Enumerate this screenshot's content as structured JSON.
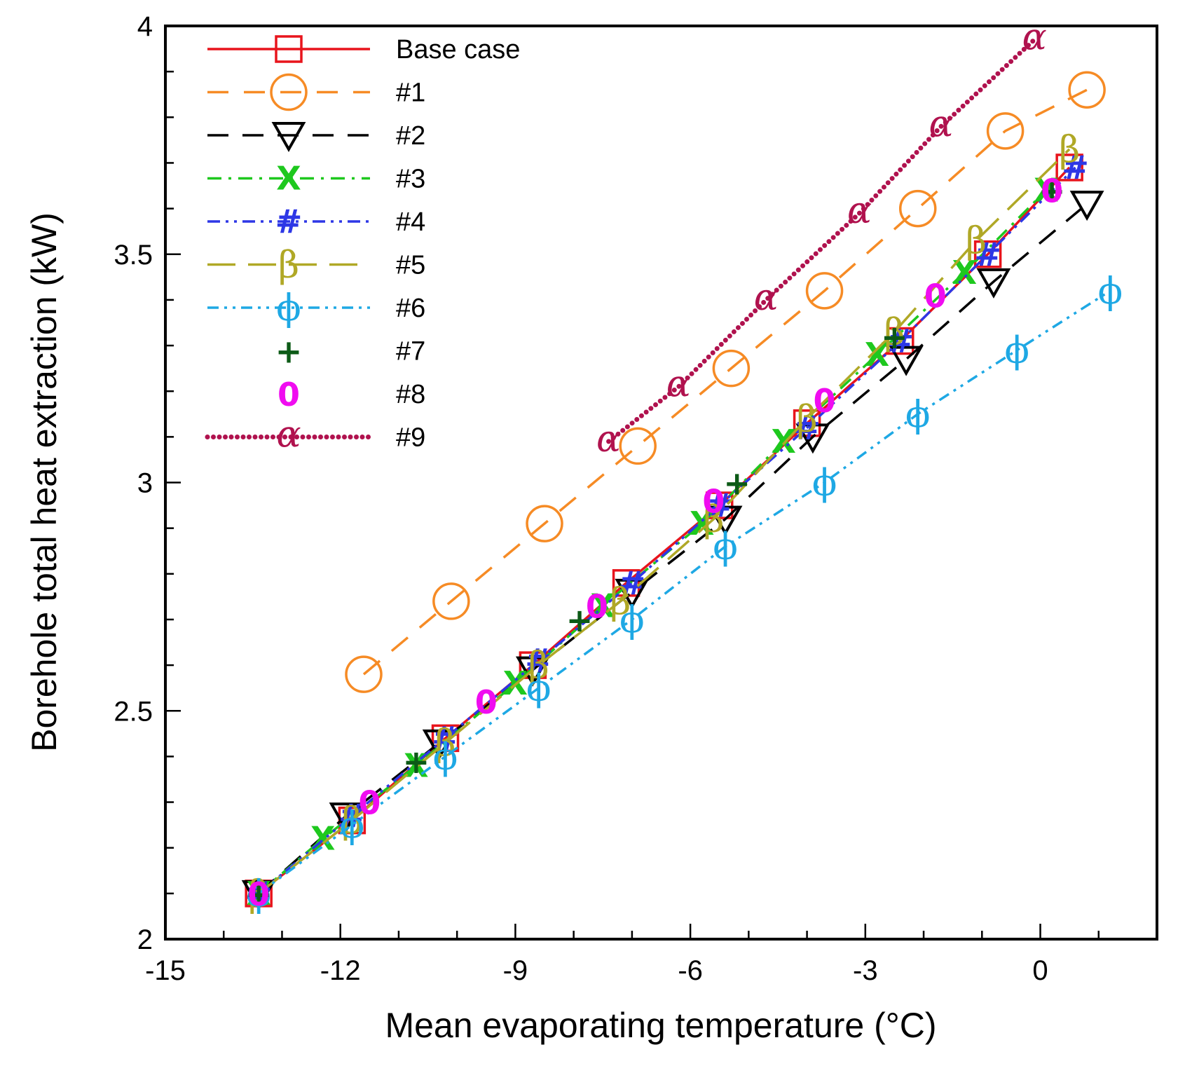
{
  "chart_data": {
    "type": "line",
    "title": "",
    "xlabel": "Mean evaporating temperature (°C)",
    "ylabel": "Borehole total heat extraction (kW)",
    "xlim": [
      -15,
      2
    ],
    "ylim": [
      2,
      4
    ],
    "xticks": [
      -15,
      -12,
      -9,
      -6,
      -3,
      0
    ],
    "xtick_labels": [
      "-15",
      "-12",
      "-9",
      "-6",
      "-3",
      "0"
    ],
    "yticks": [
      2,
      2.5,
      3,
      3.5,
      4
    ],
    "ytick_labels": [
      "2",
      "2.5",
      "3",
      "3.5",
      "4"
    ],
    "grid": false,
    "legend_position": "top-left",
    "series": [
      {
        "name": "Base case",
        "color": "#e8141c",
        "dash": "",
        "marker": "square",
        "x": [
          -13.4,
          -11.8,
          -10.2,
          -8.7,
          -7.1,
          -5.5,
          -4.0,
          -2.4,
          -0.9,
          0.5
        ],
        "y": [
          2.1,
          2.26,
          2.44,
          2.6,
          2.78,
          2.95,
          3.13,
          3.31,
          3.5,
          3.69
        ]
      },
      {
        "name": "#1",
        "color": "#f68b25",
        "dash": "30,22",
        "marker": "circle",
        "x": [
          -11.6,
          -10.1,
          -8.5,
          -6.9,
          -5.3,
          -3.7,
          -2.1,
          -0.6,
          0.8
        ],
        "y": [
          2.58,
          2.74,
          2.91,
          3.08,
          3.25,
          3.42,
          3.6,
          3.77,
          3.86
        ]
      },
      {
        "name": "#2",
        "color": "#000000",
        "dash": "30,20",
        "marker": "triangle-down",
        "x": [
          -13.4,
          -11.9,
          -10.3,
          -8.7,
          -7.0,
          -5.4,
          -3.9,
          -2.3,
          -0.8,
          0.8
        ],
        "y": [
          2.1,
          2.27,
          2.43,
          2.59,
          2.76,
          2.92,
          3.1,
          3.27,
          3.44,
          3.61
        ]
      },
      {
        "name": "#3",
        "color": "#1ec81e",
        "dash": "20,10,4,10",
        "marker": "x",
        "x": [
          -13.4,
          -12.3,
          -10.7,
          -9.0,
          -7.5,
          -5.8,
          -4.4,
          -2.8,
          -1.3,
          0.1
        ],
        "y": [
          2.1,
          2.22,
          2.38,
          2.56,
          2.73,
          2.91,
          3.09,
          3.28,
          3.46,
          3.64
        ]
      },
      {
        "name": "#4",
        "color": "#2d37e6",
        "dash": "18,8,4,8,4,8",
        "marker": "hash",
        "x": [
          -13.4,
          -11.8,
          -10.2,
          -8.6,
          -7.0,
          -5.5,
          -4.0,
          -2.4,
          -0.9,
          0.6
        ],
        "y": [
          2.1,
          2.27,
          2.44,
          2.61,
          2.78,
          2.95,
          3.12,
          3.31,
          3.5,
          3.69
        ]
      },
      {
        "name": "#5",
        "color": "#b0a826",
        "dash": "40,18",
        "marker": "beta",
        "x": [
          -13.4,
          -11.8,
          -10.2,
          -8.6,
          -7.2,
          -5.6,
          -4.0,
          -2.5,
          -1.1,
          0.5
        ],
        "y": [
          2.1,
          2.26,
          2.43,
          2.6,
          2.74,
          2.92,
          3.14,
          3.33,
          3.53,
          3.73
        ]
      },
      {
        "name": "#6",
        "color": "#1ea8e4",
        "dash": "16,8,4,8,4,8",
        "marker": "phi",
        "x": [
          -13.4,
          -11.8,
          -10.2,
          -8.6,
          -7.0,
          -5.4,
          -3.7,
          -2.1,
          -0.4,
          1.2
        ],
        "y": [
          2.1,
          2.25,
          2.4,
          2.55,
          2.7,
          2.86,
          3.0,
          3.15,
          3.29,
          3.42
        ]
      },
      {
        "name": "#7",
        "color": "#0c5a16",
        "dash": "none",
        "marker": "plus",
        "x": [
          -13.4,
          -10.7,
          -7.9,
          -5.2,
          -2.5,
          0.2
        ],
        "y": [
          2.1,
          2.39,
          2.7,
          3.0,
          3.32,
          3.64
        ]
      },
      {
        "name": "#8",
        "color": "#f00cf0",
        "dash": "none",
        "marker": "zero",
        "x": [
          -13.4,
          -11.5,
          -9.5,
          -7.6,
          -5.6,
          -3.7,
          -1.8,
          0.2
        ],
        "y": [
          2.1,
          2.3,
          2.52,
          2.73,
          2.96,
          3.18,
          3.41,
          3.64
        ]
      },
      {
        "name": "#9",
        "color": "#b0124e",
        "dash": "0,8.5",
        "marker": "alpha",
        "x": [
          -7.4,
          -6.2,
          -4.7,
          -3.1,
          -1.7,
          -0.1
        ],
        "y": [
          3.09,
          3.21,
          3.4,
          3.59,
          3.78,
          3.97
        ]
      }
    ]
  }
}
